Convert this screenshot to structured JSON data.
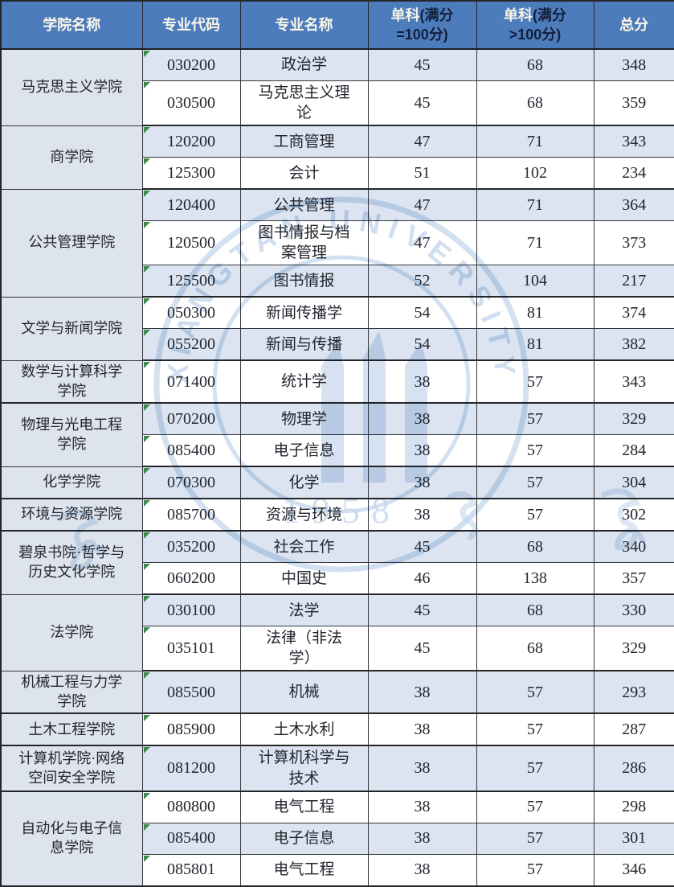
{
  "header": {
    "college": "学院名称",
    "code": "专业代码",
    "major": "专业名称",
    "single_eq": {
      "prefix": "单科",
      "rest": "(满分",
      "line2": "=100分)"
    },
    "single_gt": {
      "prefix": "单科",
      "rest": "(满分",
      "line2": ">100分)"
    },
    "total": "总分"
  },
  "watermark": {
    "ring_text": "XIANGTAN UNIVERSITY",
    "year": "1958"
  },
  "colors": {
    "header_bg": "#4d7cbd",
    "header_text_light": "#f6f3e4",
    "header_text_dark": "#141f3a",
    "shaded_row_bg": "#dbe4f0",
    "college_column_bg": "#dde4ee",
    "border": "#35383d",
    "body_text": "#23262e",
    "excel_triangle_green": "#3c8a4e",
    "watermark_blue": "#b9cfe8"
  },
  "groups": [
    {
      "college": "马克思主义学院",
      "rows": [
        {
          "code": "030200",
          "major": "政治学",
          "s_eq": "45",
          "s_gt": "68",
          "total": "348"
        },
        {
          "code": "030500",
          "major": "马克思主义理\n论",
          "s_eq": "45",
          "s_gt": "68",
          "total": "359"
        }
      ]
    },
    {
      "college": "商学院",
      "rows": [
        {
          "code": "120200",
          "major": "工商管理",
          "s_eq": "47",
          "s_gt": "71",
          "total": "343"
        },
        {
          "code": "125300",
          "major": "会计",
          "s_eq": "51",
          "s_gt": "102",
          "total": "234"
        }
      ]
    },
    {
      "college": "公共管理学院",
      "rows": [
        {
          "code": "120400",
          "major": "公共管理",
          "s_eq": "47",
          "s_gt": "71",
          "total": "364"
        },
        {
          "code": "120500",
          "major": "图书情报与档\n案管理",
          "s_eq": "47",
          "s_gt": "71",
          "total": "373"
        },
        {
          "code": "125500",
          "major": "图书情报",
          "s_eq": "52",
          "s_gt": "104",
          "total": "217"
        }
      ]
    },
    {
      "college": "文学与新闻学院",
      "rows": [
        {
          "code": "050300",
          "major": "新闻传播学",
          "s_eq": "54",
          "s_gt": "81",
          "total": "374"
        },
        {
          "code": "055200",
          "major": "新闻与传播",
          "s_eq": "54",
          "s_gt": "81",
          "total": "382"
        }
      ]
    },
    {
      "college": "数学与计算科学\n学院",
      "rows": [
        {
          "code": "071400",
          "major": "统计学",
          "s_eq": "38",
          "s_gt": "57",
          "total": "343"
        }
      ]
    },
    {
      "college": "物理与光电工程\n学院",
      "rows": [
        {
          "code": "070200",
          "major": "物理学",
          "s_eq": "38",
          "s_gt": "57",
          "total": "329"
        },
        {
          "code": "085400",
          "major": "电子信息",
          "s_eq": "38",
          "s_gt": "57",
          "total": "284"
        }
      ]
    },
    {
      "college": "化学学院",
      "rows": [
        {
          "code": "070300",
          "major": "化学",
          "s_eq": "38",
          "s_gt": "57",
          "total": "304"
        }
      ]
    },
    {
      "college": "环境与资源学院",
      "rows": [
        {
          "code": "085700",
          "major": "资源与环境",
          "s_eq": "38",
          "s_gt": "57",
          "total": "302"
        }
      ]
    },
    {
      "college": "碧泉书院·哲学与\n历史文化学院",
      "rows": [
        {
          "code": "035200",
          "major": "社会工作",
          "s_eq": "45",
          "s_gt": "68",
          "total": "340"
        },
        {
          "code": "060200",
          "major": "中国史",
          "s_eq": "46",
          "s_gt": "138",
          "total": "357"
        }
      ]
    },
    {
      "college": "法学院",
      "rows": [
        {
          "code": "030100",
          "major": "法学",
          "s_eq": "45",
          "s_gt": "68",
          "total": "330"
        },
        {
          "code": "035101",
          "major": "法律（非法\n学）",
          "s_eq": "45",
          "s_gt": "68",
          "total": "329"
        }
      ]
    },
    {
      "college": "机械工程与力学\n学院",
      "rows": [
        {
          "code": "085500",
          "major": "机械",
          "s_eq": "38",
          "s_gt": "57",
          "total": "293"
        }
      ]
    },
    {
      "college": "土木工程学院",
      "rows": [
        {
          "code": "085900",
          "major": "土木水利",
          "s_eq": "38",
          "s_gt": "57",
          "total": "287"
        }
      ]
    },
    {
      "college": "计算机学院·网络\n空间安全学院",
      "rows": [
        {
          "code": "081200",
          "major": "计算机科学与\n技术",
          "s_eq": "38",
          "s_gt": "57",
          "total": "286"
        }
      ]
    },
    {
      "college": "自动化与电子信\n息学院",
      "rows": [
        {
          "code": "080800",
          "major": "电气工程",
          "s_eq": "38",
          "s_gt": "57",
          "total": "298"
        },
        {
          "code": "085400",
          "major": "电子信息",
          "s_eq": "38",
          "s_gt": "57",
          "total": "301"
        },
        {
          "code": "085801",
          "major": "电气工程",
          "s_eq": "38",
          "s_gt": "57",
          "total": "346"
        }
      ]
    }
  ]
}
